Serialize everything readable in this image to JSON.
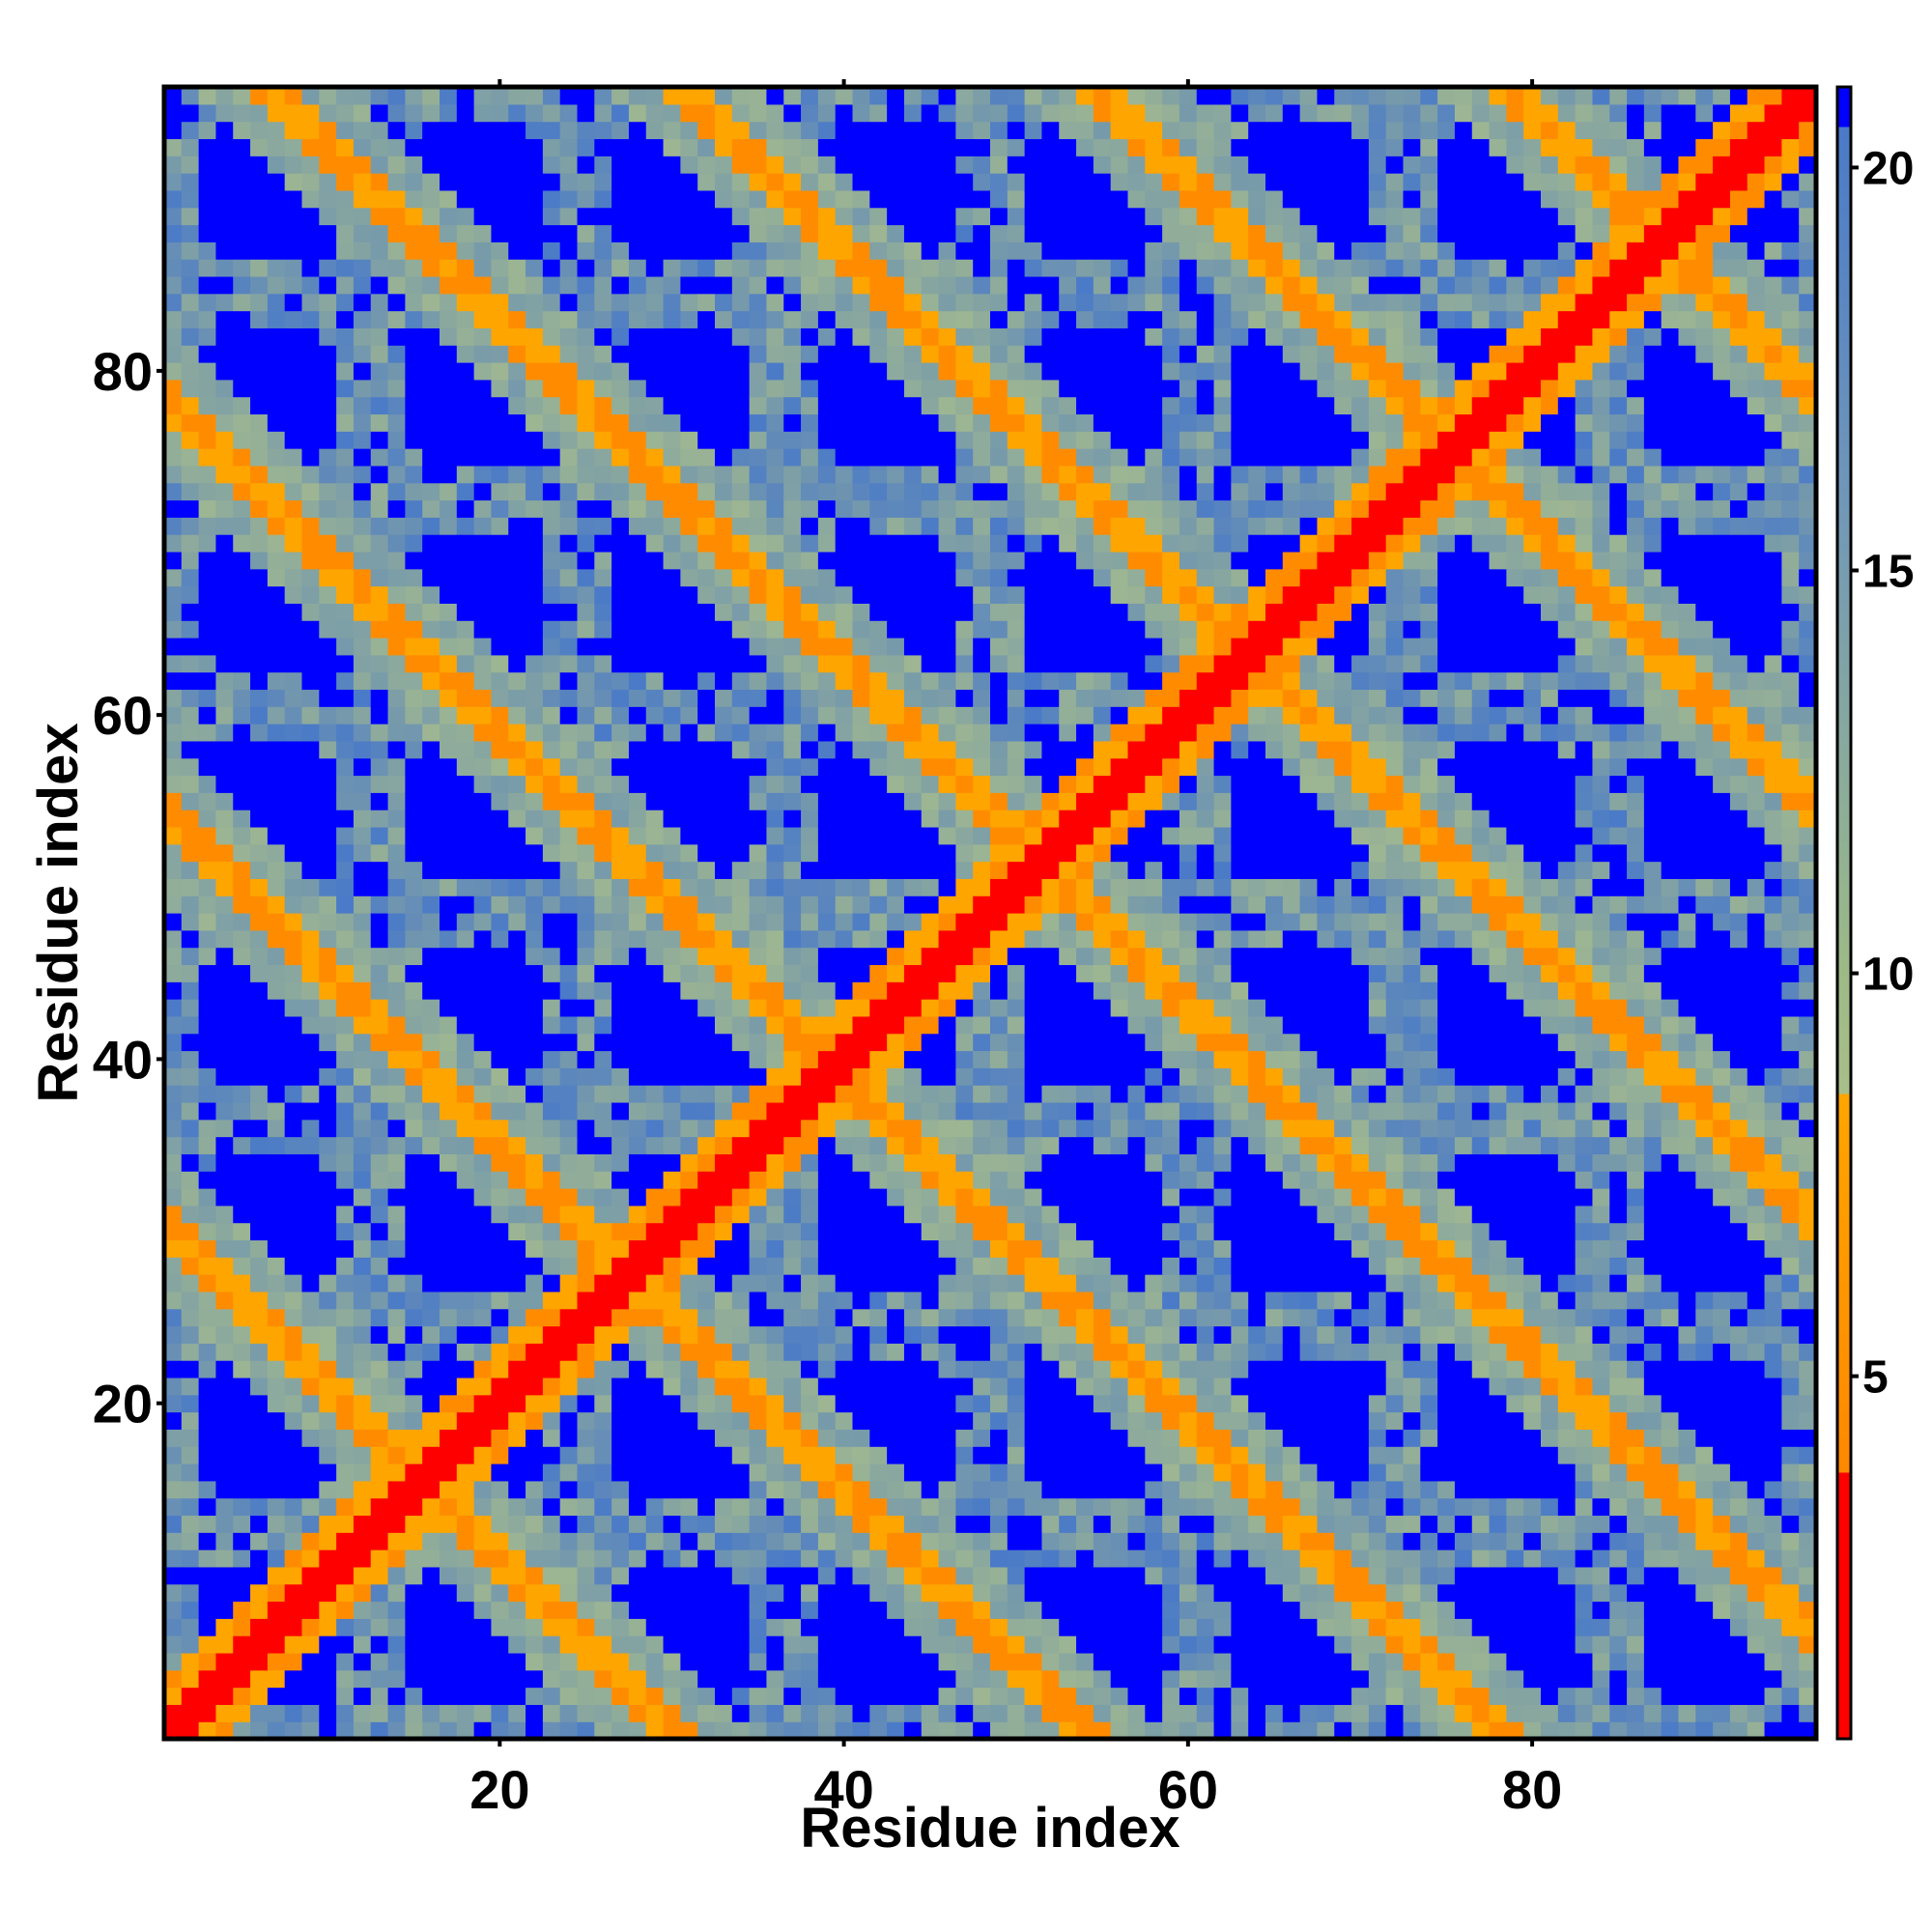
{
  "chart_data": {
    "type": "heatmap",
    "title": "",
    "xlabel": "Residue index",
    "ylabel": "Residue index",
    "n_residues": 96,
    "xlim": [
      0.5,
      96.5
    ],
    "ylim": [
      0.5,
      96.5
    ],
    "x_ticks": [
      20,
      40,
      60,
      80
    ],
    "y_ticks": [
      20,
      40,
      60,
      80
    ],
    "colorbar": {
      "range": [
        0.5,
        21
      ],
      "ticks": [
        5,
        10,
        15,
        20
      ],
      "stops": [
        {
          "value": 0.5,
          "color": "#ff0000"
        },
        {
          "value": 3.8,
          "color": "#ff0000"
        },
        {
          "value": 3.8,
          "color": "#ff8800"
        },
        {
          "value": 8.5,
          "color": "#ffa500"
        },
        {
          "value": 8.5,
          "color": "#a9be8a"
        },
        {
          "value": 10,
          "color": "#9dba86"
        },
        {
          "value": 16,
          "color": "#6f96b9"
        },
        {
          "value": 20.5,
          "color": "#4a7ac8"
        },
        {
          "value": 20.5,
          "color": "#0000ff"
        }
      ]
    },
    "value_bins": {
      "contact_cutoff": 3.8,
      "near_cutoff": 8.5,
      "far_cutoff": 20.5
    },
    "grid": false,
    "legend": "colorbar-right",
    "description_of_values": "symmetric residue-residue distance map with helical crossings"
  }
}
